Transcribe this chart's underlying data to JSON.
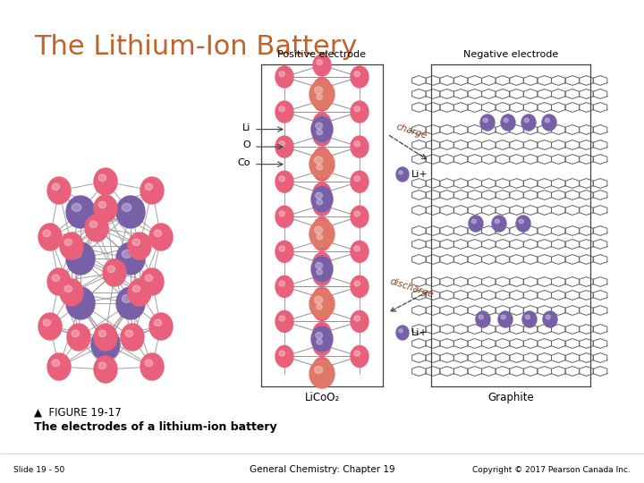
{
  "title": "The Lithium-Ion Battery",
  "title_color": "#C0622B",
  "title_fontsize": 22,
  "background_color": "#FFFFFF",
  "figure_caption_triangle": "▲",
  "figure_caption_label": "  FIGURE 19-17",
  "figure_caption_desc": "The electrodes of a lithium-ion battery",
  "footer_left": "Slide 19 - 50",
  "footer_center": "General Chemistry: Chapter 19",
  "footer_right": "Copyright © 2017 Pearson Canada Inc.",
  "pos_electrode_label": "Positive electrode",
  "neg_electrode_label": "Negative electrode",
  "licoo2_label": "LiCoO₂",
  "graphite_label": "Graphite",
  "co_label": "Co",
  "o_label": "O",
  "li_label": "Li",
  "charge_label": "charge",
  "discharge_label": "discharge",
  "lip_top_label": "Li+",
  "lip_bot_label": "Li+",
  "pink_color": "#E8607A",
  "pink2_color": "#F090A0",
  "salmon_color": "#E07868",
  "purple_color": "#7860A8",
  "line_color": "#404040",
  "italic_color": "#804020"
}
